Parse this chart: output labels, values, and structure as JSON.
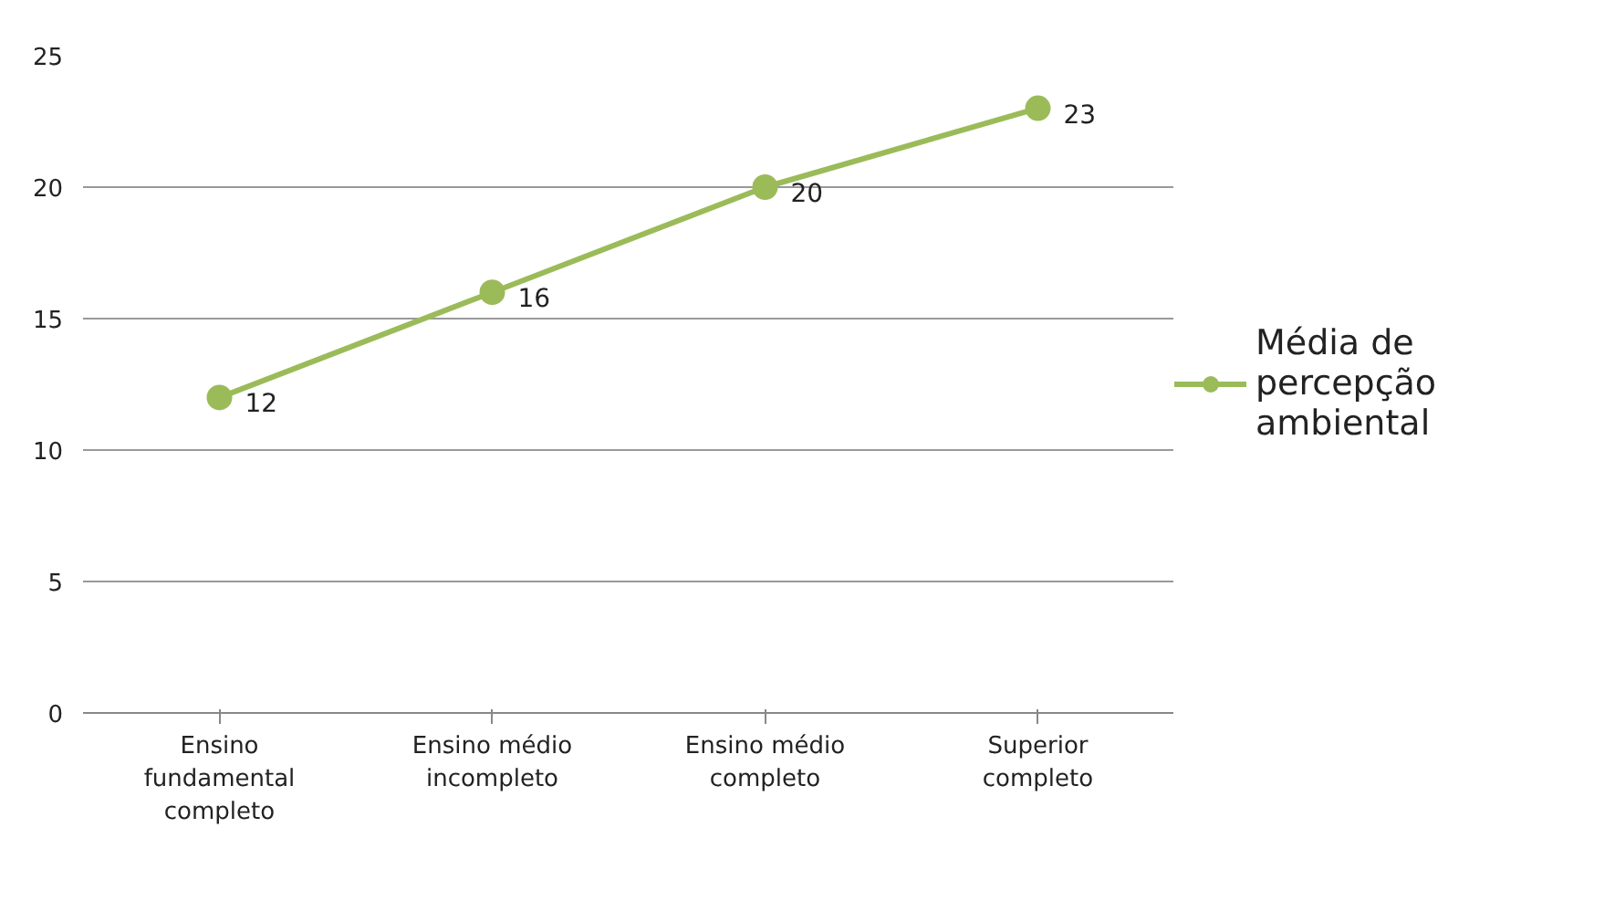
{
  "chart_data": {
    "type": "line",
    "categories": [
      "Ensino fundamental completo",
      "Ensino médio incompleto",
      "Ensino médio completo",
      "Superior completo"
    ],
    "series": [
      {
        "name": "Média de percepção ambiental",
        "color": "#9bbb59",
        "values": [
          12,
          16,
          20,
          23
        ]
      }
    ],
    "ylim": [
      0,
      25
    ],
    "yticks": [
      0,
      5,
      10,
      15,
      20,
      25
    ],
    "grid": "y",
    "legend": "right",
    "marker": "circle",
    "data_labels": true
  }
}
